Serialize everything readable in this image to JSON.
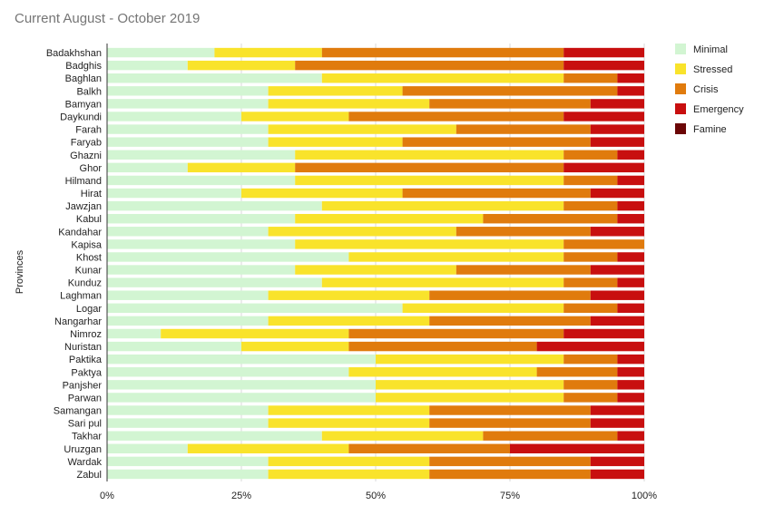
{
  "chart_data": {
    "type": "bar",
    "orientation": "horizontal",
    "stacked": true,
    "normalized": true,
    "title": "Current  August - October 2019",
    "ylabel": "Provinces",
    "xlabel": "",
    "xlim": [
      0,
      100
    ],
    "x_ticks": [
      "0%",
      "25%",
      "50%",
      "75%",
      "100%"
    ],
    "grid": true,
    "legend_position": "right",
    "categories": [
      "Badakhshan",
      "Badghis",
      "Baghlan",
      "Balkh",
      "Bamyan",
      "Daykundi",
      "Farah",
      "Faryab",
      "Ghazni",
      "Ghor",
      "Hilmand",
      "Hirat",
      "Jawzjan",
      "Kabul",
      "Kandahar",
      "Kapisa",
      "Khost",
      "Kunar",
      "Kunduz",
      "Laghman",
      "Logar",
      "Nangarhar",
      "Nimroz",
      "Nuristan",
      "Paktika",
      "Paktya",
      "Panjsher",
      "Parwan",
      "Samangan",
      "Sari pul",
      "Takhar",
      "Uruzgan",
      "Wardak",
      "Zabul"
    ],
    "series": [
      {
        "name": "Minimal",
        "color": "#d2f5d2",
        "values": [
          20,
          15,
          40,
          30,
          30,
          25,
          30,
          30,
          35,
          15,
          35,
          25,
          40,
          35,
          30,
          35,
          45,
          35,
          40,
          30,
          55,
          30,
          10,
          25,
          50,
          45,
          50,
          50,
          30,
          30,
          40,
          15,
          30,
          30
        ]
      },
      {
        "name": "Stressed",
        "color": "#f9e32b",
        "values": [
          20,
          20,
          45,
          25,
          30,
          20,
          35,
          25,
          50,
          20,
          50,
          30,
          45,
          35,
          35,
          50,
          40,
          30,
          45,
          30,
          30,
          30,
          35,
          20,
          35,
          35,
          35,
          35,
          30,
          30,
          30,
          30,
          30,
          30
        ]
      },
      {
        "name": "Crisis",
        "color": "#e07b0d",
        "values": [
          45,
          50,
          10,
          40,
          30,
          40,
          25,
          35,
          10,
          50,
          10,
          35,
          10,
          25,
          25,
          15,
          10,
          25,
          10,
          30,
          10,
          30,
          40,
          35,
          10,
          15,
          10,
          10,
          30,
          30,
          25,
          30,
          30,
          30
        ]
      },
      {
        "name": "Emergency",
        "color": "#c80f0f",
        "values": [
          15,
          15,
          5,
          5,
          10,
          15,
          10,
          10,
          5,
          15,
          5,
          10,
          5,
          5,
          10,
          0,
          5,
          10,
          5,
          10,
          5,
          10,
          15,
          20,
          5,
          5,
          5,
          5,
          10,
          10,
          5,
          25,
          10,
          10
        ]
      },
      {
        "name": "Famine",
        "color": "#6b0606",
        "values": [
          0,
          0,
          0,
          0,
          0,
          0,
          0,
          0,
          0,
          0,
          0,
          0,
          0,
          0,
          0,
          0,
          0,
          0,
          0,
          0,
          0,
          0,
          0,
          0,
          0,
          0,
          0,
          0,
          0,
          0,
          0,
          0,
          0,
          0
        ]
      }
    ]
  }
}
